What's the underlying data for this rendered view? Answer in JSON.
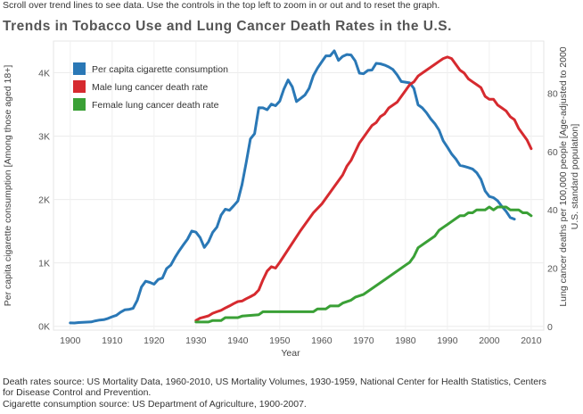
{
  "instructions": "Scroll over trend lines to see data. Use the controls in the top left to zoom in or out and to reset the graph.",
  "title": "Trends in Tobacco Use and Lung Cancer Death Rates in the U.S.",
  "sources": {
    "line1": "Death rates source: US Mortality Data, 1960-2010, US Mortality Volumes, 1930-1959, National Center for Health Statistics, Centers",
    "line2": "for Disease Control and Prevention.",
    "line3": "Cigarette consumption source: US Department of Agriculture, 1900-2007."
  },
  "colors": {
    "cigarette": "#2a78b6",
    "male": "#d62a2f",
    "female": "#3aa036"
  },
  "chart_data": {
    "type": "line",
    "title": "Trends in Tobacco Use and Lung Cancer Death Rates in the U.S.",
    "xlabel": "Year",
    "ylabel_left": "Per capita cigarette consumption [Among those aged 18+]",
    "ylabel_right_line1": "Lung cancer deaths per 100,000 people [Age-adjusted to 2000",
    "ylabel_right_line2": "U.S. standard population]",
    "xlim": [
      1896,
      2013
    ],
    "ylim_left": [
      -60,
      4500
    ],
    "ylim_right": [
      -1.3,
      98
    ],
    "x_ticks": [
      1900,
      1910,
      1920,
      1930,
      1940,
      1950,
      1960,
      1970,
      1980,
      1990,
      2000,
      2010
    ],
    "y_ticks_left": [
      {
        "value": 0,
        "label": "0K"
      },
      {
        "value": 1000,
        "label": "1K"
      },
      {
        "value": 2000,
        "label": "2K"
      },
      {
        "value": 3000,
        "label": "3K"
      },
      {
        "value": 4000,
        "label": "4K"
      }
    ],
    "y_ticks_right": [
      0,
      20,
      40,
      60,
      80
    ],
    "legend": [
      {
        "key": "cigarette",
        "label": "Per capita cigarette consumption"
      },
      {
        "key": "male",
        "label": "Male lung cancer death rate"
      },
      {
        "key": "female",
        "label": "Female lung cancer death rate"
      }
    ],
    "series": [
      {
        "key": "cigarette",
        "name": "Per capita cigarette consumption",
        "axis": "left",
        "x": [
          1900,
          1901,
          1902,
          1903,
          1904,
          1905,
          1906,
          1907,
          1908,
          1909,
          1910,
          1911,
          1912,
          1913,
          1914,
          1915,
          1916,
          1917,
          1918,
          1919,
          1920,
          1921,
          1922,
          1923,
          1924,
          1925,
          1926,
          1927,
          1928,
          1929,
          1930,
          1931,
          1932,
          1933,
          1934,
          1935,
          1936,
          1937,
          1938,
          1939,
          1940,
          1941,
          1942,
          1943,
          1944,
          1945,
          1946,
          1947,
          1948,
          1949,
          1950,
          1951,
          1952,
          1953,
          1954,
          1955,
          1956,
          1957,
          1958,
          1959,
          1960,
          1961,
          1962,
          1963,
          1964,
          1965,
          1966,
          1967,
          1968,
          1969,
          1970,
          1971,
          1972,
          1973,
          1974,
          1975,
          1976,
          1977,
          1978,
          1979,
          1980,
          1981,
          1982,
          1983,
          1984,
          1985,
          1986,
          1987,
          1988,
          1989,
          1990,
          1991,
          1992,
          1993,
          1994,
          1995,
          1996,
          1997,
          1998,
          1999,
          2000,
          2001,
          2002,
          2003,
          2004,
          2005,
          2006
        ],
        "values": [
          54,
          53,
          60,
          64,
          66,
          70,
          86,
          99,
          105,
          125,
          151,
          173,
          223,
          260,
          267,
          285,
          410,
          621,
          711,
          693,
          665,
          740,
          760,
          911,
          966,
          1085,
          1191,
          1285,
          1376,
          1504,
          1485,
          1399,
          1245,
          1334,
          1483,
          1564,
          1754,
          1847,
          1830,
          1900,
          1976,
          2236,
          2585,
          2956,
          3039,
          3449,
          3446,
          3416,
          3505,
          3480,
          3552,
          3744,
          3886,
          3778,
          3546,
          3597,
          3650,
          3755,
          3953,
          4073,
          4171,
          4266,
          4266,
          4345,
          4195,
          4258,
          4287,
          4280,
          4186,
          3993,
          3985,
          4037,
          4043,
          4148,
          4141,
          4122,
          4092,
          4051,
          3967,
          3861,
          3851,
          3840,
          3753,
          3494,
          3446,
          3370,
          3274,
          3197,
          3096,
          2926,
          2827,
          2720,
          2641,
          2539,
          2524,
          2505,
          2482,
          2423,
          2320,
          2136,
          2049,
          2028,
          1979,
          1890,
          1814,
          1716,
          1691
        ]
      },
      {
        "key": "male",
        "name": "Male lung cancer death rate",
        "axis": "right",
        "x": [
          1930,
          1931,
          1932,
          1933,
          1934,
          1935,
          1936,
          1937,
          1938,
          1939,
          1940,
          1941,
          1942,
          1943,
          1944,
          1945,
          1946,
          1947,
          1948,
          1949,
          1950,
          1955,
          1958,
          1960,
          1963,
          1965,
          1966,
          1967,
          1968,
          1969,
          1970,
          1971,
          1972,
          1973,
          1974,
          1975,
          1976,
          1977,
          1978,
          1979,
          1980,
          1981,
          1982,
          1983,
          1984,
          1985,
          1986,
          1987,
          1988,
          1989,
          1990,
          1991,
          1992,
          1993,
          1994,
          1995,
          1996,
          1997,
          1998,
          1999,
          2000,
          2001,
          2002,
          2003,
          2004,
          2005,
          2006,
          2007,
          2008,
          2009,
          2010
        ],
        "values": [
          2,
          2.8,
          3.2,
          3.6,
          4.5,
          5,
          5.5,
          6.3,
          7,
          7.8,
          8.5,
          8.7,
          9.5,
          10.2,
          11,
          12.5,
          16,
          19,
          20.5,
          20,
          22,
          33,
          39,
          42,
          48,
          52,
          55,
          57,
          60,
          63,
          65,
          67,
          69,
          70,
          72,
          73,
          75,
          76,
          77,
          79,
          81,
          83,
          84,
          86,
          87,
          88,
          89,
          90,
          91,
          92,
          92.5,
          92,
          90,
          88,
          87,
          85,
          84,
          83,
          82,
          79,
          78,
          78,
          76,
          75,
          74,
          72,
          71,
          68,
          66,
          64,
          61
        ]
      },
      {
        "key": "female",
        "name": "Female lung cancer death rate",
        "axis": "right",
        "x": [
          1930,
          1933,
          1934,
          1936,
          1937,
          1940,
          1941,
          1945,
          1946,
          1955,
          1956,
          1958,
          1959,
          1961,
          1962,
          1964,
          1965,
          1967,
          1968,
          1970,
          1971,
          1973,
          1975,
          1980,
          1981,
          1982,
          1983,
          1985,
          1986,
          1987,
          1988,
          1989,
          1990,
          1991,
          1992,
          1993,
          1994,
          1995,
          1996,
          1997,
          1998,
          1999,
          2000,
          2001,
          2002,
          2003,
          2004,
          2005,
          2006,
          2007,
          2008,
          2009,
          2010
        ],
        "values": [
          1.5,
          1.5,
          2,
          2,
          3,
          3,
          3.5,
          4,
          5,
          5,
          5,
          5,
          6,
          6,
          7,
          7,
          8,
          9,
          10,
          11,
          12,
          14,
          16,
          21,
          22,
          24,
          27,
          29,
          30,
          31,
          33,
          34,
          35,
          36,
          37,
          38,
          38,
          39,
          39,
          40,
          40,
          40,
          41,
          40,
          41,
          41,
          41,
          40,
          40,
          40,
          39,
          39,
          38
        ]
      }
    ]
  }
}
